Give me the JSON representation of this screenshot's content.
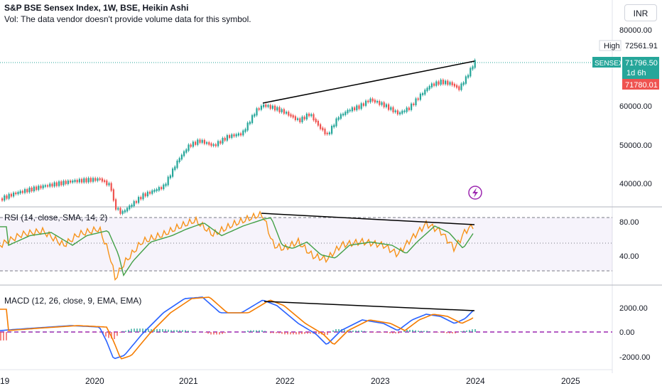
{
  "header": {
    "title": "S&P BSE Sensex Index, 1W, BSE, Heikin Ashi",
    "volume_note": "Vol: The data vendor doesn't provide volume data for this symbol."
  },
  "currency_button": "INR",
  "price_axis": {
    "ticks": [
      "80000.00",
      "60000.00",
      "50000.00",
      "40000.00"
    ],
    "high_label": "High",
    "high_value": "72561.91",
    "symbol_badge": "SENSEX",
    "last_price": "71796.50",
    "countdown": "1d 6h",
    "low_value": "71780.01"
  },
  "rsi_pane": {
    "label": "RSI (14, close, SMA, 14, 2)",
    "ticks": [
      "80.00",
      "40.00"
    ]
  },
  "macd_pane": {
    "label": "MACD (12, 26, close, 9, EMA, EMA)",
    "ticks": [
      "2000.00",
      "0.00",
      "-2000.00"
    ]
  },
  "time_axis": {
    "labels": [
      "19",
      "2020",
      "2021",
      "2022",
      "2023",
      "2024",
      "2025"
    ]
  },
  "colors": {
    "up": "#26a69a",
    "down": "#ef5350",
    "rsi_line": "#f7931a",
    "rsi_ma": "#43a047",
    "macd_line": "#2962ff",
    "signal_line": "#f57c00",
    "zero_line": "#9c27b0"
  },
  "icons": {
    "alert": "lightning-bolt-icon"
  }
}
